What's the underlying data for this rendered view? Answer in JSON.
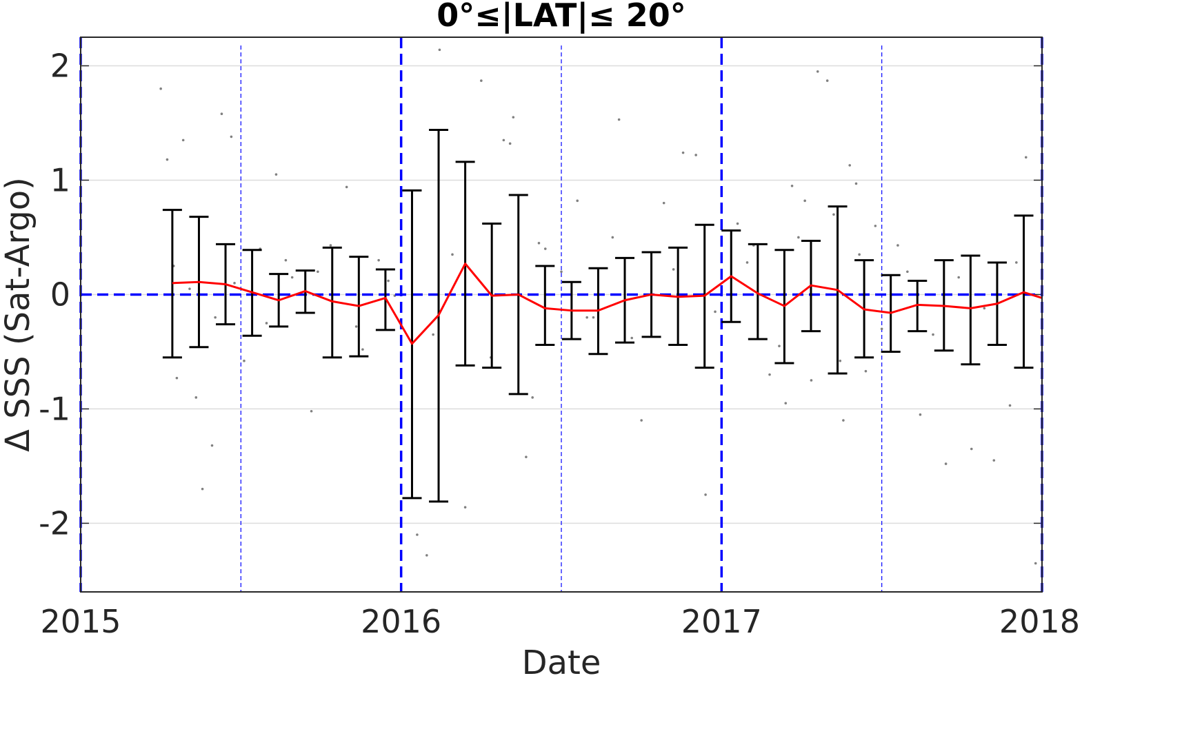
{
  "chart_data": {
    "type": "scatter",
    "title": "0°≤|LAT|≤ 20°",
    "xlabel": "Date",
    "ylabel": "Δ SSS (Sat-Argo)",
    "xlim": [
      2015.0,
      2018.0
    ],
    "ylim": [
      -2.6,
      2.25
    ],
    "xticks": [
      2015,
      2016,
      2017,
      2018
    ],
    "xtick_labels": [
      "2015",
      "2016",
      "2017",
      "2018"
    ],
    "yticks": [
      2,
      1,
      0,
      -1,
      -2
    ],
    "ytick_labels": [
      "2",
      "1",
      "0",
      "-1",
      "-2"
    ],
    "grid": true,
    "reference_line_y": 0,
    "year_lines": [
      2015,
      2016,
      2017,
      2018
    ],
    "half_year_lines": [
      2015.5,
      2016.5,
      2017.5
    ],
    "colors": {
      "mean_line": "#ff0000",
      "errorbar": "#000000",
      "reference": "#0000ff",
      "points": "#808080",
      "grid": "#dcdcdc"
    },
    "series": [
      {
        "type": "errorbar",
        "x": [
          2015.286,
          2015.369,
          2015.452,
          2015.535,
          2015.618,
          2015.701,
          2015.785,
          2015.868,
          2015.951,
          2016.034,
          2016.117,
          2016.2,
          2016.283,
          2016.366,
          2016.449,
          2016.532,
          2016.615,
          2016.698,
          2016.781,
          2016.864,
          2016.947,
          2017.03,
          2017.113,
          2017.196,
          2017.279,
          2017.362,
          2017.445,
          2017.528,
          2017.611,
          2017.694,
          2017.777,
          2017.86,
          2017.943,
          2018.0
        ],
        "mean": [
          0.1,
          0.11,
          0.09,
          0.02,
          -0.05,
          0.03,
          -0.06,
          -0.1,
          -0.03,
          -0.43,
          -0.18,
          0.27,
          -0.01,
          0.0,
          -0.12,
          -0.14,
          -0.14,
          -0.05,
          0.0,
          -0.02,
          -0.01,
          0.16,
          0.01,
          -0.1,
          0.08,
          0.04,
          -0.13,
          -0.16,
          -0.09,
          -0.1,
          -0.12,
          -0.08,
          0.02,
          -0.03
        ],
        "upper": [
          0.74,
          0.68,
          0.44,
          0.39,
          0.18,
          0.21,
          0.41,
          0.33,
          0.22,
          0.91,
          1.44,
          1.16,
          0.62,
          0.87,
          0.25,
          0.11,
          0.23,
          0.32,
          0.37,
          0.41,
          0.61,
          0.56,
          0.44,
          0.39,
          0.47,
          0.77,
          0.3,
          0.17,
          0.12,
          0.3,
          0.34,
          0.28,
          0.69,
          null
        ],
        "lower": [
          -0.55,
          -0.46,
          -0.26,
          -0.36,
          -0.28,
          -0.16,
          -0.55,
          -0.54,
          -0.31,
          -1.78,
          -1.81,
          -0.62,
          -0.64,
          -0.87,
          -0.44,
          -0.39,
          -0.52,
          -0.42,
          -0.37,
          -0.44,
          -0.64,
          -0.24,
          -0.39,
          -0.6,
          -0.32,
          -0.69,
          -0.55,
          -0.5,
          -0.32,
          -0.49,
          -0.61,
          -0.44,
          -0.64,
          null
        ]
      },
      {
        "type": "scatter",
        "x": [
          2015.25,
          2015.27,
          2015.3,
          2015.32,
          2015.36,
          2015.38,
          2015.41,
          2015.44,
          2015.47,
          2015.51,
          2015.56,
          2015.61,
          2015.66,
          2015.72,
          2015.78,
          2015.83,
          2015.88,
          2015.93,
          2015.98,
          2016.05,
          2016.08,
          2016.12,
          2016.2,
          2016.25,
          2016.32,
          2016.34,
          2016.35,
          2016.39,
          2016.41,
          2016.45,
          2016.5,
          2016.55,
          2016.6,
          2016.68,
          2016.75,
          2016.82,
          2016.88,
          2016.92,
          2016.95,
          2017.05,
          2017.1,
          2017.15,
          2017.2,
          2017.22,
          2017.26,
          2017.3,
          2017.33,
          2017.38,
          2017.4,
          2017.42,
          2017.45,
          2017.48,
          2017.55,
          2017.62,
          2017.7,
          2017.78,
          2017.85,
          2017.9,
          2017.95,
          2017.98,
          2015.29,
          2015.34,
          2015.42,
          2015.48,
          2015.58,
          2015.64,
          2015.74,
          2015.86,
          2015.96,
          2016.1,
          2016.16,
          2016.28,
          2016.43,
          2016.58,
          2016.66,
          2016.72,
          2016.85,
          2016.98,
          2017.08,
          2017.18,
          2017.24,
          2017.28,
          2017.35,
          2017.37,
          2017.43,
          2017.5,
          2017.58,
          2017.66,
          2017.74,
          2017.82,
          2017.92
        ],
        "y": [
          1.8,
          1.18,
          -0.73,
          1.35,
          -0.9,
          -1.7,
          -1.32,
          1.58,
          1.38,
          -0.58,
          0.4,
          1.05,
          0.15,
          -1.02,
          0.43,
          0.94,
          -0.48,
          0.3,
          -0.01,
          -2.1,
          -2.28,
          2.14,
          -1.86,
          1.87,
          1.35,
          1.32,
          1.55,
          -1.42,
          -0.9,
          0.4,
          0.2,
          0.82,
          -0.2,
          1.53,
          -1.1,
          0.8,
          1.24,
          1.22,
          -1.75,
          0.62,
          0.43,
          -0.7,
          -0.95,
          0.95,
          0.82,
          1.95,
          1.87,
          -1.1,
          1.13,
          0.97,
          -0.67,
          0.6,
          0.43,
          -1.05,
          -1.48,
          -1.35,
          -1.45,
          -0.97,
          1.2,
          -2.35,
          0.25,
          0.05,
          -0.2,
          0.1,
          -0.25,
          0.3,
          0.2,
          -0.28,
          0.12,
          -0.35,
          0.35,
          -0.55,
          0.45,
          -0.2,
          0.5,
          -0.38,
          0.22,
          -0.15,
          0.28,
          -0.45,
          0.5,
          -0.75,
          0.7,
          -0.58,
          0.35,
          -0.3,
          0.2,
          -0.35,
          0.15,
          -0.12,
          0.28
        ]
      }
    ]
  }
}
